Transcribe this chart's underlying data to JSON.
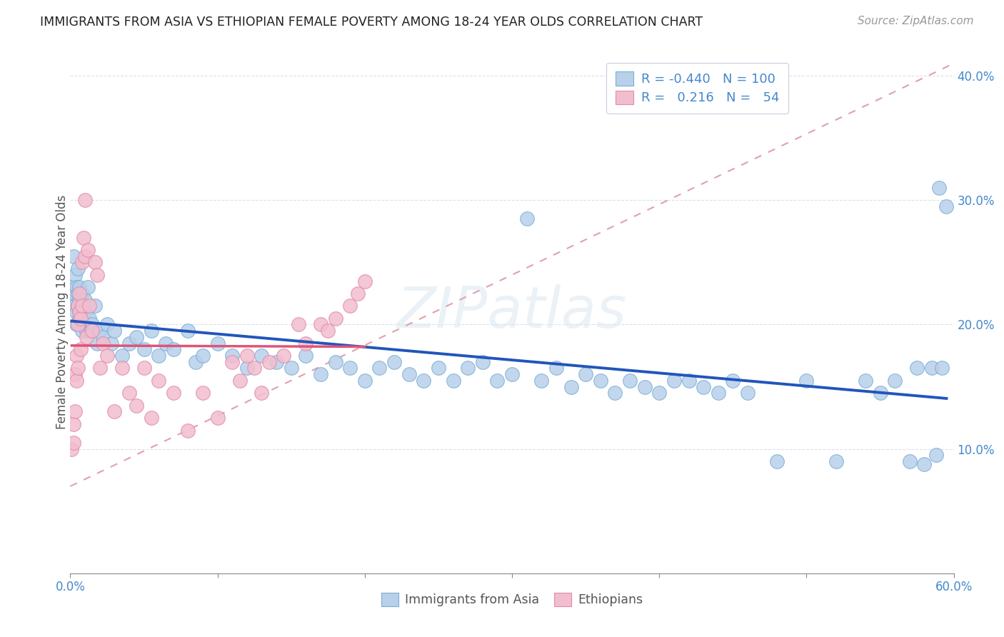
{
  "title": "IMMIGRANTS FROM ASIA VS ETHIOPIAN FEMALE POVERTY AMONG 18-24 YEAR OLDS CORRELATION CHART",
  "source": "Source: ZipAtlas.com",
  "ylabel": "Female Poverty Among 18-24 Year Olds",
  "xlim": [
    0.0,
    0.6
  ],
  "ylim": [
    0.0,
    0.42
  ],
  "xtick_pos": [
    0.0,
    0.1,
    0.2,
    0.3,
    0.4,
    0.5,
    0.6
  ],
  "xtick_labels_show": [
    "0.0%",
    "",
    "",
    "",
    "",
    "",
    "60.0%"
  ],
  "ytick_pos": [
    0.0,
    0.1,
    0.2,
    0.3,
    0.4
  ],
  "ytick_labels": [
    "",
    "10.0%",
    "20.0%",
    "30.0%",
    "40.0%"
  ],
  "asia_color": "#b8d0ea",
  "asia_edge": "#7aaed4",
  "eth_color": "#f2bece",
  "eth_edge": "#e08aaa",
  "blue_line_color": "#2255bb",
  "pink_line_color": "#dd5577",
  "dashed_line_color": "#e0a0b0",
  "background_color": "#ffffff",
  "grid_color": "#dde0ee",
  "watermark": "ZIPatlas",
  "legend1_label1": "R = -0.440   N = 100",
  "legend1_label2": "R =   0.216   N =   54",
  "legend2_label1": "Immigrants from Asia",
  "legend2_label2": "Ethiopians",
  "asia_x": [
    0.001,
    0.002,
    0.002,
    0.003,
    0.003,
    0.003,
    0.004,
    0.004,
    0.004,
    0.005,
    0.005,
    0.005,
    0.006,
    0.006,
    0.006,
    0.006,
    0.007,
    0.007,
    0.007,
    0.008,
    0.008,
    0.008,
    0.009,
    0.009,
    0.01,
    0.01,
    0.011,
    0.012,
    0.013,
    0.014,
    0.015,
    0.017,
    0.018,
    0.02,
    0.022,
    0.025,
    0.028,
    0.03,
    0.035,
    0.04,
    0.045,
    0.05,
    0.055,
    0.06,
    0.065,
    0.07,
    0.08,
    0.085,
    0.09,
    0.1,
    0.11,
    0.12,
    0.13,
    0.14,
    0.15,
    0.16,
    0.17,
    0.18,
    0.19,
    0.2,
    0.21,
    0.22,
    0.23,
    0.24,
    0.25,
    0.26,
    0.27,
    0.28,
    0.29,
    0.3,
    0.31,
    0.32,
    0.33,
    0.34,
    0.35,
    0.36,
    0.37,
    0.38,
    0.39,
    0.4,
    0.41,
    0.42,
    0.43,
    0.44,
    0.45,
    0.46,
    0.48,
    0.5,
    0.52,
    0.54,
    0.55,
    0.56,
    0.57,
    0.575,
    0.58,
    0.585,
    0.588,
    0.59,
    0.592,
    0.595
  ],
  "asia_y": [
    0.23,
    0.255,
    0.22,
    0.24,
    0.215,
    0.225,
    0.21,
    0.23,
    0.2,
    0.245,
    0.215,
    0.225,
    0.23,
    0.21,
    0.205,
    0.22,
    0.215,
    0.2,
    0.21,
    0.225,
    0.205,
    0.195,
    0.215,
    0.2,
    0.21,
    0.22,
    0.195,
    0.23,
    0.205,
    0.195,
    0.2,
    0.215,
    0.185,
    0.195,
    0.19,
    0.2,
    0.185,
    0.195,
    0.175,
    0.185,
    0.19,
    0.18,
    0.195,
    0.175,
    0.185,
    0.18,
    0.195,
    0.17,
    0.175,
    0.185,
    0.175,
    0.165,
    0.175,
    0.17,
    0.165,
    0.175,
    0.16,
    0.17,
    0.165,
    0.155,
    0.165,
    0.17,
    0.16,
    0.155,
    0.165,
    0.155,
    0.165,
    0.17,
    0.155,
    0.16,
    0.285,
    0.155,
    0.165,
    0.15,
    0.16,
    0.155,
    0.145,
    0.155,
    0.15,
    0.145,
    0.155,
    0.155,
    0.15,
    0.145,
    0.155,
    0.145,
    0.09,
    0.155,
    0.09,
    0.155,
    0.145,
    0.155,
    0.09,
    0.165,
    0.088,
    0.165,
    0.095,
    0.31,
    0.165,
    0.295
  ],
  "eth_x": [
    0.001,
    0.002,
    0.002,
    0.003,
    0.003,
    0.004,
    0.004,
    0.005,
    0.005,
    0.005,
    0.006,
    0.006,
    0.007,
    0.007,
    0.008,
    0.008,
    0.009,
    0.01,
    0.01,
    0.011,
    0.012,
    0.013,
    0.015,
    0.017,
    0.018,
    0.02,
    0.022,
    0.025,
    0.03,
    0.035,
    0.04,
    0.045,
    0.05,
    0.055,
    0.06,
    0.07,
    0.08,
    0.09,
    0.1,
    0.11,
    0.115,
    0.12,
    0.125,
    0.13,
    0.135,
    0.145,
    0.155,
    0.16,
    0.17,
    0.175,
    0.18,
    0.19,
    0.195,
    0.2
  ],
  "eth_y": [
    0.1,
    0.12,
    0.105,
    0.13,
    0.16,
    0.155,
    0.175,
    0.2,
    0.215,
    0.165,
    0.21,
    0.225,
    0.205,
    0.18,
    0.215,
    0.25,
    0.27,
    0.3,
    0.255,
    0.19,
    0.26,
    0.215,
    0.195,
    0.25,
    0.24,
    0.165,
    0.185,
    0.175,
    0.13,
    0.165,
    0.145,
    0.135,
    0.165,
    0.125,
    0.155,
    0.145,
    0.115,
    0.145,
    0.125,
    0.17,
    0.155,
    0.175,
    0.165,
    0.145,
    0.17,
    0.175,
    0.2,
    0.185,
    0.2,
    0.195,
    0.205,
    0.215,
    0.225,
    0.235
  ]
}
